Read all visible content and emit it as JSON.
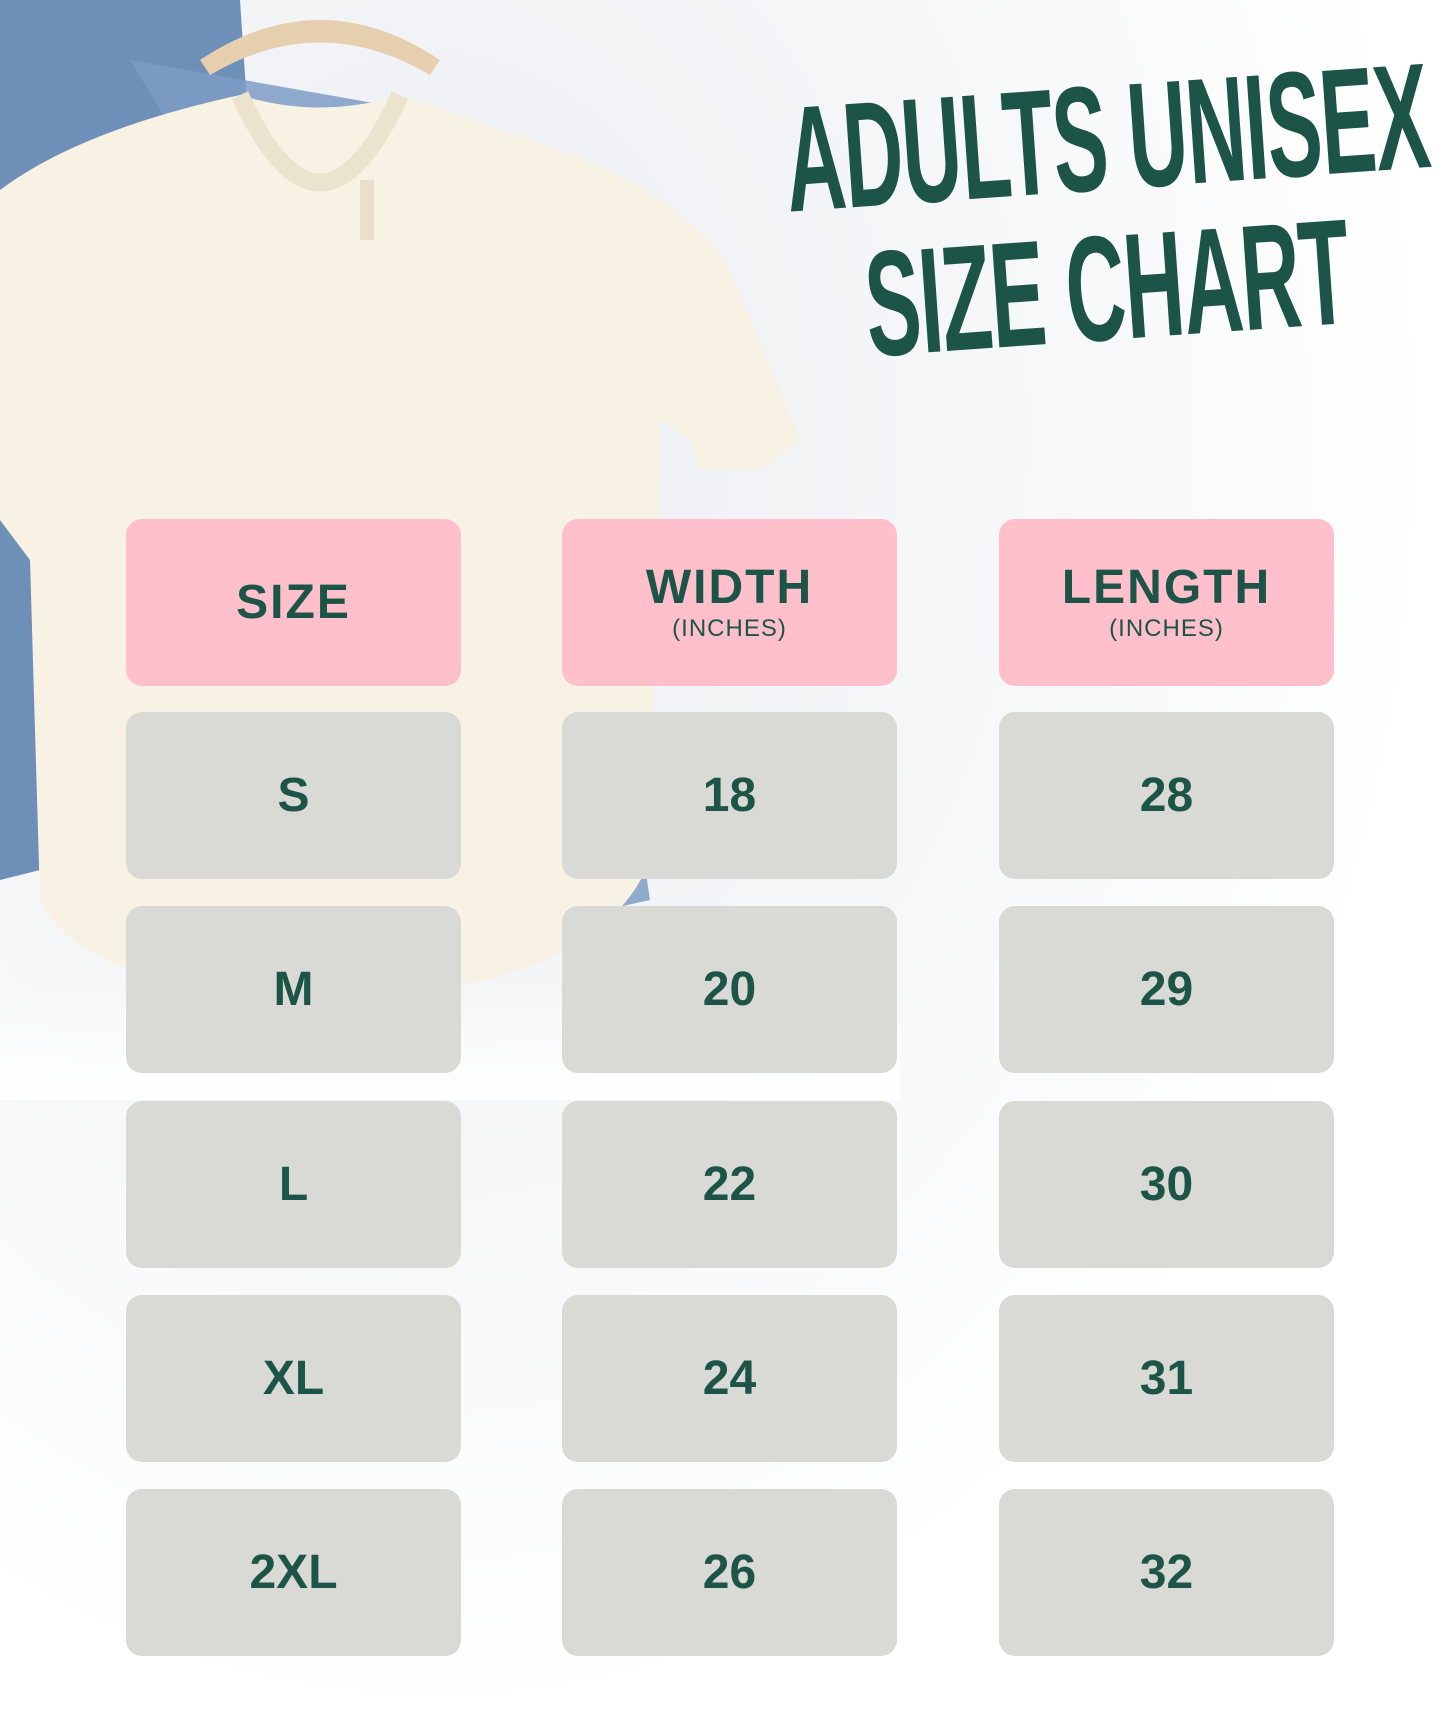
{
  "title": {
    "line1": "ADULTS UNISEX",
    "line2": "SIZE CHART"
  },
  "colors": {
    "header_bg": "#ffc0cb",
    "cell_bg": "#d9dad5",
    "text": "#1d5448"
  },
  "chart_data": {
    "type": "table",
    "columns": [
      {
        "label": "SIZE",
        "unit": ""
      },
      {
        "label": "WIDTH",
        "unit": "(INCHES)"
      },
      {
        "label": "LENGTH",
        "unit": "(INCHES)"
      }
    ],
    "rows": [
      [
        "S",
        "18",
        "28"
      ],
      [
        "M",
        "20",
        "29"
      ],
      [
        "L",
        "22",
        "30"
      ],
      [
        "XL",
        "24",
        "31"
      ],
      [
        "2XL",
        "26",
        "32"
      ]
    ]
  }
}
